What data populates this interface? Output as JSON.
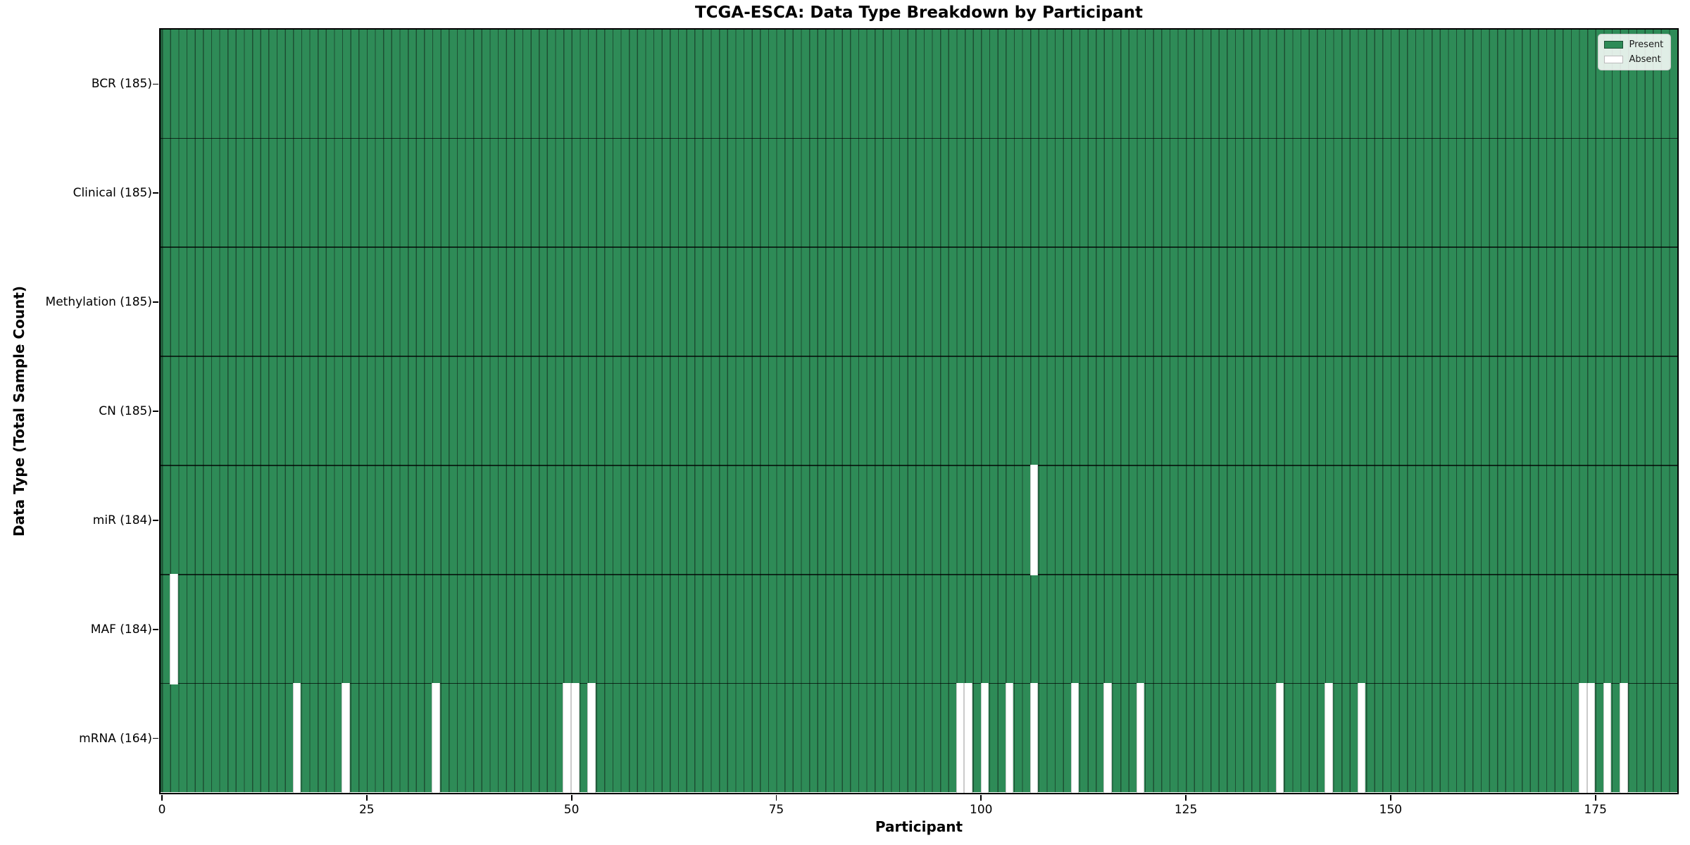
{
  "chart_data": {
    "type": "heatmap",
    "title": "TCGA-ESCA: Data Type Breakdown by Participant",
    "xlabel": "Participant",
    "ylabel": "Data Type (Total Sample Count)",
    "x_ticks": [
      0,
      25,
      50,
      75,
      100,
      125,
      150,
      175
    ],
    "x_range": [
      0,
      185
    ],
    "n_participants": 185,
    "grid": "cell-edges-only",
    "legend": {
      "position": "upper right",
      "entries": [
        {
          "label": "Present",
          "color": "#2e8b57"
        },
        {
          "label": "Absent",
          "color": "#ffffff"
        }
      ]
    },
    "colors": {
      "present": "#2e8b57",
      "absent": "#ffffff",
      "cell_edge": "#1d4f33",
      "row_divider": "rgba(0,0,0,0.7)",
      "spine": "#000000",
      "text": "#000000"
    },
    "rows": [
      {
        "data_type": "BCR",
        "label": "BCR (185)",
        "present_count": 185,
        "absent_participants": []
      },
      {
        "data_type": "Clinical",
        "label": "Clinical (185)",
        "present_count": 185,
        "absent_participants": []
      },
      {
        "data_type": "Methylation",
        "label": "Methylation (185)",
        "present_count": 185,
        "absent_participants": []
      },
      {
        "data_type": "CN",
        "label": "CN (185)",
        "present_count": 185,
        "absent_participants": []
      },
      {
        "data_type": "miR",
        "label": "miR (184)",
        "present_count": 184,
        "absent_participants": [
          106
        ]
      },
      {
        "data_type": "MAF",
        "label": "MAF (184)",
        "present_count": 184,
        "absent_participants": [
          1
        ]
      },
      {
        "data_type": "mRNA",
        "label": "mRNA (164)",
        "present_count": 164,
        "absent_participants": [
          16,
          22,
          33,
          49,
          50,
          52,
          97,
          98,
          100,
          103,
          106,
          111,
          115,
          119,
          136,
          142,
          146,
          173,
          174,
          176,
          178
        ]
      }
    ]
  }
}
